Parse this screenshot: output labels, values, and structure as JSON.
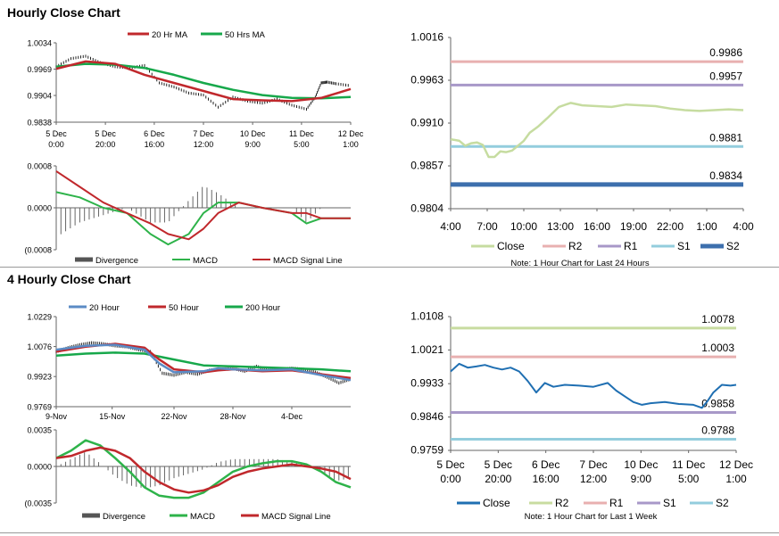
{
  "sections": [
    {
      "title": "Hourly Close Chart"
    },
    {
      "title": "4 Hourly Close Chart"
    }
  ],
  "colors": {
    "ma_red": "#c0282c",
    "ma_green": "#17a84b",
    "ma_blue": "#5b8bc5",
    "macd_green": "#2eb34a",
    "signal_red": "#c0282c",
    "divergence": "#666666",
    "close_light": "#c6dca0",
    "close_blue": "#1f6fb2",
    "r2": "#e8b0b0",
    "r1": "#a898c8",
    "s1": "#93cddd",
    "s2": "#3d6fad",
    "w_r2": "#c8dca0",
    "w_r1": "#e8b0b0",
    "w_s1": "#a898c8",
    "w_s2": "#93cddd"
  },
  "chart_data": [
    {
      "id": "hourly_price",
      "type": "line",
      "title": "Hourly Close Chart",
      "legend": [
        "20 Hr MA",
        "50 Hrs MA"
      ],
      "y_ticks": [
        "1.0034",
        "0.9969",
        "0.9904",
        "0.9838"
      ],
      "y_tick_values": [
        1.0034,
        0.9969,
        0.9904,
        0.9838
      ],
      "ylim": [
        0.9838,
        1.0034
      ],
      "x_ticks": [
        [
          "5 Dec",
          "0:00"
        ],
        [
          "5 Dec",
          "20:00"
        ],
        [
          "6 Dec",
          "16:00"
        ],
        [
          "7 Dec",
          "12:00"
        ],
        [
          "10 Dec",
          "9:00"
        ],
        [
          "11 Dec",
          "5:00"
        ],
        [
          "12 Dec",
          "1:00"
        ]
      ],
      "x_tick_pos": [
        0,
        16.7,
        33.3,
        50,
        66.7,
        83.3,
        100
      ],
      "price_x": [
        0,
        5,
        10,
        15,
        20,
        25,
        30,
        35,
        40,
        45,
        50,
        55,
        60,
        65,
        70,
        75,
        80,
        85,
        88,
        90,
        92,
        95,
        100
      ],
      "price": [
        0.9975,
        0.9995,
        1.0001,
        0.9985,
        0.9975,
        0.9972,
        0.9978,
        0.9935,
        0.9925,
        0.991,
        0.9905,
        0.9875,
        0.99,
        0.989,
        0.9885,
        0.9895,
        0.988,
        0.987,
        0.99,
        0.9935,
        0.9937,
        0.9933,
        0.9928
      ],
      "ma20_x": [
        0,
        10,
        20,
        30,
        40,
        50,
        60,
        70,
        80,
        90,
        100
      ],
      "ma20": [
        0.997,
        0.9988,
        0.9982,
        0.9955,
        0.9935,
        0.9915,
        0.9895,
        0.9892,
        0.989,
        0.9898,
        0.992
      ],
      "ma50_x": [
        0,
        10,
        20,
        30,
        40,
        50,
        60,
        70,
        80,
        90,
        100
      ],
      "ma50": [
        0.9975,
        0.9982,
        0.998,
        0.9972,
        0.9955,
        0.9935,
        0.9918,
        0.9905,
        0.9898,
        0.9897,
        0.99
      ]
    },
    {
      "id": "hourly_macd",
      "type": "line",
      "legend": [
        "Divergence",
        "MACD",
        "MACD Signal Line"
      ],
      "y_ticks": [
        "0.0008",
        "0.0000",
        "(0.0008"
      ],
      "y_tick_values": [
        0.0008,
        0.0,
        -0.0008
      ],
      "ylim": [
        -0.0008,
        0.0008
      ],
      "macd_x": [
        0,
        8,
        16,
        24,
        32,
        38,
        45,
        50,
        55,
        62,
        70,
        80,
        85,
        90,
        95,
        100
      ],
      "macd": [
        0.0003,
        0.0002,
        0.0,
        -0.0001,
        -0.0005,
        -0.0007,
        -0.0005,
        -0.0001,
        0.0001,
        0.0001,
        0.0,
        -0.0001,
        -0.0003,
        -0.0002,
        -0.0002,
        -0.0002
      ],
      "signal_x": [
        0,
        8,
        16,
        24,
        32,
        38,
        45,
        50,
        55,
        62,
        70,
        80,
        85,
        90,
        95,
        100
      ],
      "signal": [
        0.0007,
        0.0004,
        0.0001,
        -0.0001,
        -0.0003,
        -0.0005,
        -0.0006,
        -0.0004,
        -0.0001,
        0.0001,
        0.0,
        -0.0001,
        -0.0001,
        -0.0002,
        -0.0002,
        -0.0002
      ]
    },
    {
      "id": "hourly_levels",
      "type": "line",
      "y_ticks": [
        "1.0016",
        "0.9963",
        "0.9910",
        "0.9857",
        "0.9804"
      ],
      "y_tick_values": [
        1.0016,
        0.9963,
        0.991,
        0.9857,
        0.9804
      ],
      "ylim": [
        0.9804,
        1.0016
      ],
      "x_ticks": [
        "4:00",
        "7:00",
        "10:00",
        "13:00",
        "16:00",
        "19:00",
        "22:00",
        "1:00",
        "4:00"
      ],
      "close_x": [
        0,
        3,
        5,
        7,
        9,
        11,
        13,
        15,
        17,
        19,
        21,
        23,
        25,
        27,
        30,
        33,
        37,
        41,
        45,
        50,
        55,
        60,
        65,
        70,
        75,
        80,
        85,
        90,
        95,
        100
      ],
      "close": [
        0.989,
        0.9888,
        0.9882,
        0.9885,
        0.9886,
        0.9883,
        0.9868,
        0.9868,
        0.9875,
        0.9874,
        0.9876,
        0.9882,
        0.9888,
        0.9898,
        0.9906,
        0.9916,
        0.993,
        0.9935,
        0.9932,
        0.9931,
        0.993,
        0.9933,
        0.9932,
        0.9931,
        0.9928,
        0.9926,
        0.9925,
        0.9926,
        0.9927,
        0.9926
      ],
      "levels": [
        {
          "name": "R2",
          "value": 0.9986,
          "label": "0.9986"
        },
        {
          "name": "R1",
          "value": 0.9957,
          "label": "0.9957"
        },
        {
          "name": "S1",
          "value": 0.9881,
          "label": "0.9881"
        },
        {
          "name": "S2",
          "value": 0.9834,
          "label": "0.9834"
        }
      ],
      "legend": [
        "Close",
        "R2",
        "R1",
        "S1",
        "S2"
      ],
      "note": "Note: 1 Hour Chart for Last 24 Hours"
    },
    {
      "id": "four_hourly_price",
      "type": "line",
      "title": "4 Hourly Close Chart",
      "legend": [
        "20 Hour",
        "50 Hour",
        "200 Hour"
      ],
      "y_ticks": [
        "1.0229",
        "1.0076",
        "0.9923",
        "0.9769"
      ],
      "y_tick_values": [
        1.0229,
        1.0076,
        0.9923,
        0.9769
      ],
      "ylim": [
        0.9769,
        1.0229
      ],
      "x_ticks": [
        "9-Nov",
        "15-Nov",
        "22-Nov",
        "28-Nov",
        "4-Dec"
      ],
      "x_tick_pos": [
        0,
        19,
        40,
        60,
        80
      ],
      "price_x": [
        0,
        4,
        8,
        12,
        16,
        20,
        24,
        28,
        32,
        36,
        40,
        44,
        48,
        52,
        56,
        60,
        64,
        68,
        72,
        76,
        80,
        84,
        88,
        92,
        96,
        100
      ],
      "price": [
        1.005,
        1.007,
        1.0085,
        1.0095,
        1.009,
        1.008,
        1.0075,
        1.006,
        1.005,
        0.994,
        0.993,
        0.9945,
        0.9935,
        0.9955,
        0.996,
        0.9965,
        0.995,
        0.9975,
        0.9955,
        0.996,
        0.9965,
        0.996,
        0.9945,
        0.992,
        0.989,
        0.991
      ],
      "ma20_x": [
        0,
        10,
        20,
        30,
        35,
        40,
        50,
        55,
        60,
        70,
        80,
        90,
        100
      ],
      "ma20": [
        1.006,
        1.008,
        1.0085,
        1.006,
        0.999,
        0.9945,
        0.995,
        0.9965,
        0.996,
        0.9955,
        0.996,
        0.993,
        0.9905
      ],
      "ma50_x": [
        0,
        10,
        20,
        30,
        35,
        40,
        50,
        55,
        60,
        70,
        80,
        90,
        100
      ],
      "ma50": [
        1.005,
        1.0075,
        1.009,
        1.007,
        1.001,
        0.996,
        0.9945,
        0.9955,
        0.996,
        0.995,
        0.9955,
        0.9935,
        0.9915
      ],
      "ma200_x": [
        0,
        10,
        20,
        30,
        40,
        50,
        60,
        70,
        80,
        90,
        100
      ],
      "ma200": [
        1.003,
        1.004,
        1.0045,
        1.004,
        1.001,
        0.998,
        0.9975,
        0.997,
        0.9965,
        0.996,
        0.995
      ]
    },
    {
      "id": "four_hourly_macd",
      "type": "line",
      "legend": [
        "Divergence",
        "MACD",
        "MACD Signal Line"
      ],
      "y_ticks": [
        "0.0035",
        "0.0000",
        "(0.0035"
      ],
      "y_tick_values": [
        0.0035,
        0.0,
        -0.0035
      ],
      "ylim": [
        -0.0035,
        0.0035
      ],
      "macd_x": [
        0,
        5,
        10,
        15,
        20,
        25,
        30,
        35,
        40,
        45,
        50,
        55,
        60,
        65,
        70,
        75,
        80,
        85,
        90,
        95,
        100
      ],
      "macd": [
        0.0008,
        0.0015,
        0.0025,
        0.002,
        0.0008,
        -0.0005,
        -0.002,
        -0.0028,
        -0.003,
        -0.003,
        -0.0025,
        -0.0015,
        -0.0005,
        0.0,
        0.0003,
        0.0005,
        0.0005,
        0.0002,
        -0.0005,
        -0.0015,
        -0.002
      ],
      "signal_x": [
        0,
        5,
        10,
        15,
        20,
        25,
        30,
        35,
        40,
        45,
        50,
        55,
        60,
        65,
        70,
        75,
        80,
        85,
        90,
        95,
        100
      ],
      "signal": [
        0.0008,
        0.001,
        0.0015,
        0.0018,
        0.0015,
        0.0008,
        -0.0005,
        -0.0015,
        -0.0022,
        -0.0025,
        -0.0023,
        -0.0018,
        -0.001,
        -0.0005,
        -0.0002,
        0.0,
        0.0002,
        0.0,
        -0.0002,
        -0.0005,
        -0.0012
      ]
    },
    {
      "id": "four_hourly_levels",
      "type": "line",
      "y_ticks": [
        "1.0108",
        "1.0021",
        "0.9933",
        "0.9846",
        "0.9759"
      ],
      "y_tick_values": [
        1.0108,
        1.0021,
        0.9933,
        0.9846,
        0.9759
      ],
      "ylim": [
        0.9759,
        1.0108
      ],
      "x_ticks": [
        [
          "5 Dec",
          "0:00"
        ],
        [
          "5 Dec",
          "20:00"
        ],
        [
          "6 Dec",
          "16:00"
        ],
        [
          "7 Dec",
          "12:00"
        ],
        [
          "10 Dec",
          "9:00"
        ],
        [
          "11 Dec",
          "5:00"
        ],
        [
          "12 Dec",
          "1:00"
        ]
      ],
      "close_x": [
        0,
        3,
        6,
        9,
        12,
        15,
        18,
        21,
        24,
        27,
        30,
        33,
        36,
        40,
        45,
        50,
        55,
        58,
        61,
        64,
        67,
        70,
        75,
        80,
        85,
        88,
        90,
        92,
        95,
        98,
        100
      ],
      "close": [
        0.9965,
        0.9985,
        0.9975,
        0.9978,
        0.9982,
        0.9975,
        0.997,
        0.9975,
        0.9965,
        0.994,
        0.991,
        0.9935,
        0.9925,
        0.993,
        0.9928,
        0.9925,
        0.9935,
        0.9915,
        0.99,
        0.9885,
        0.9878,
        0.9882,
        0.9885,
        0.988,
        0.9878,
        0.987,
        0.9888,
        0.991,
        0.993,
        0.9928,
        0.993
      ],
      "levels": [
        {
          "name": "R2",
          "value": 1.0078,
          "label": "1.0078"
        },
        {
          "name": "R1",
          "value": 1.0003,
          "label": "1.0003"
        },
        {
          "name": "S1",
          "value": 0.9858,
          "label": "0.9858"
        },
        {
          "name": "S2",
          "value": 0.9788,
          "label": "0.9788"
        }
      ],
      "legend": [
        "Close",
        "R2",
        "R1",
        "S1",
        "S2"
      ],
      "note": "Note: 1 Hour Chart for Last 1 Week"
    }
  ]
}
